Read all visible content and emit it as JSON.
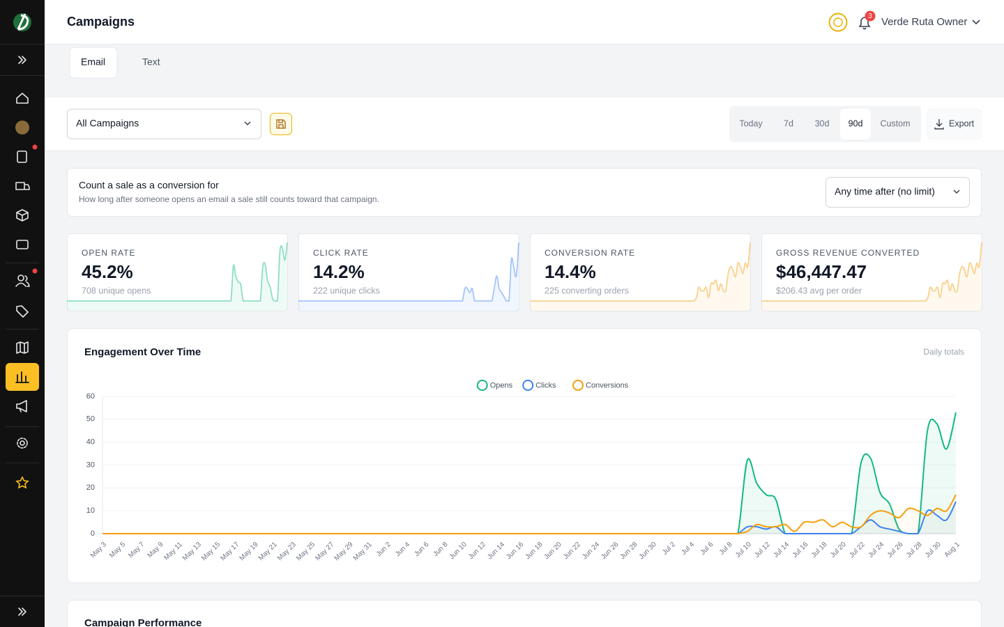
{
  "header": {
    "title": "Campaigns",
    "notification_count": 3,
    "user": "Verde Ruta Owner"
  },
  "tabs": [
    "Email",
    "Text"
  ],
  "filters": {
    "campaign_select": "All Campaigns",
    "ranges": [
      "Today",
      "7d",
      "30d",
      "90d",
      "Custom"
    ],
    "export": "Export"
  },
  "conversion_window": {
    "title": "Count a sale as a conversion for",
    "description": "How long after someone opens an email a sale still counts toward that campaign.",
    "select": "Any time after (no limit)"
  },
  "kpis": [
    {
      "label": "OPEN RATE",
      "value": "45.2%",
      "sub": "708 unique opens"
    },
    {
      "label": "CLICK RATE",
      "value": "14.2%",
      "sub": "222 unique clicks"
    },
    {
      "label": "CONVERSION RATE",
      "value": "14.4%",
      "sub": "225 converting orders"
    },
    {
      "label": "GROSS REVENUE CONVERTED",
      "value": "$46,447.47",
      "sub": "$206.43 avg per order"
    }
  ],
  "chart_data": {
    "type": "line",
    "title": "Engagement Over Time",
    "subtitle": "Daily totals",
    "categories": [
      "May 3",
      null,
      "May 5",
      null,
      "May 7",
      null,
      "May 9",
      null,
      "May 11",
      null,
      "May 13",
      null,
      "May 15",
      null,
      "May 17",
      null,
      "May 19",
      null,
      "May 21",
      null,
      "May 23",
      null,
      "May 25",
      null,
      "May 27",
      null,
      "May 29",
      null,
      "May 31",
      null,
      "Jun 2",
      null,
      "Jun 4",
      null,
      "Jun 6",
      null,
      "Jun 8",
      null,
      "Jun 10",
      null,
      "Jun 12",
      null,
      "Jun 14",
      null,
      "Jun 16",
      null,
      "Jun 18",
      null,
      "Jun 20",
      null,
      "Jun 22",
      null,
      "Jun 24",
      null,
      "Jun 26",
      null,
      "Jun 28",
      null,
      "Jun 30",
      null,
      "Jul 2",
      null,
      "Jul 4",
      null,
      "Jul 6",
      null,
      "Jul 8",
      null,
      "Jul 10",
      null,
      "Jul 12",
      null,
      "Jul 14",
      null,
      "Jul 16",
      null,
      "Jul 18",
      null,
      "Jul 20",
      null,
      "Jul 22",
      null,
      "Jul 24",
      null,
      "Jul 26",
      null,
      "Jul 28",
      null,
      "Jul 30",
      null,
      "Aug 1"
    ],
    "series": [
      {
        "name": "Opens",
        "color": "#10b981",
        "values": [
          0,
          0,
          0,
          0,
          0,
          0,
          0,
          0,
          0,
          0,
          0,
          0,
          0,
          0,
          0,
          0,
          0,
          0,
          0,
          0,
          0,
          0,
          0,
          0,
          0,
          0,
          0,
          0,
          0,
          0,
          0,
          0,
          0,
          0,
          0,
          0,
          0,
          0,
          0,
          0,
          0,
          0,
          0,
          0,
          0,
          0,
          0,
          0,
          0,
          0,
          0,
          0,
          0,
          0,
          0,
          0,
          0,
          0,
          0,
          0,
          0,
          0,
          0,
          0,
          0,
          0,
          0,
          0,
          32,
          22,
          17,
          15,
          0,
          0,
          0,
          0,
          0,
          0,
          0,
          0,
          31,
          33,
          18,
          13,
          2,
          0,
          0,
          45,
          48,
          37,
          53
        ]
      },
      {
        "name": "Clicks",
        "color": "#3b82f6",
        "values": [
          0,
          0,
          0,
          0,
          0,
          0,
          0,
          0,
          0,
          0,
          0,
          0,
          0,
          0,
          0,
          0,
          0,
          0,
          0,
          0,
          0,
          0,
          0,
          0,
          0,
          0,
          0,
          0,
          0,
          0,
          0,
          0,
          0,
          0,
          0,
          0,
          0,
          0,
          0,
          0,
          0,
          0,
          0,
          0,
          0,
          0,
          0,
          0,
          0,
          0,
          0,
          0,
          0,
          0,
          0,
          0,
          0,
          0,
          0,
          0,
          0,
          0,
          0,
          0,
          0,
          0,
          0,
          0,
          3,
          3,
          2,
          3,
          0,
          0,
          0,
          0,
          0,
          0,
          0,
          0,
          3,
          6,
          3,
          2,
          1,
          0,
          0,
          10,
          8,
          6,
          14
        ]
      },
      {
        "name": "Conversions",
        "color": "#f59e0b",
        "values": [
          0,
          0,
          0,
          0,
          0,
          0,
          0,
          0,
          0,
          0,
          0,
          0,
          0,
          0,
          0,
          0,
          0,
          0,
          0,
          0,
          0,
          0,
          0,
          0,
          0,
          0,
          0,
          0,
          0,
          0,
          0,
          0,
          0,
          0,
          0,
          0,
          0,
          0,
          0,
          0,
          0,
          0,
          0,
          0,
          0,
          0,
          0,
          0,
          0,
          0,
          0,
          0,
          0,
          0,
          0,
          0,
          0,
          0,
          0,
          0,
          0,
          0,
          0,
          0,
          0,
          0,
          0,
          0,
          1,
          4,
          3,
          3,
          4,
          1,
          5,
          5,
          6,
          3,
          5,
          3,
          3,
          8,
          10,
          9,
          7,
          11,
          10,
          8,
          11,
          10,
          17
        ]
      }
    ],
    "ylim": [
      0,
      60
    ],
    "yticks": [
      0,
      10,
      20,
      30,
      40,
      50,
      60
    ],
    "grid": true,
    "legend": "top"
  },
  "next_section": {
    "title": "Campaign Performance"
  }
}
